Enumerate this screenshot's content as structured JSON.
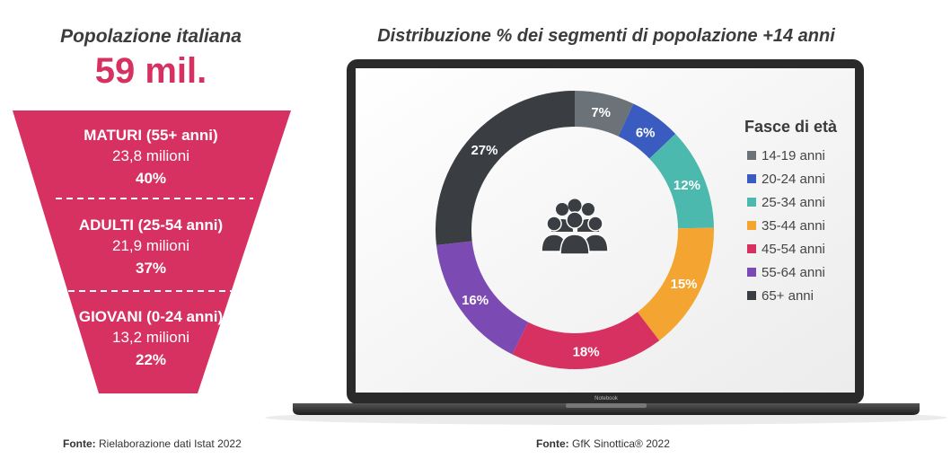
{
  "left": {
    "title": "Popolazione italiana",
    "total": "59 mil.",
    "segments": [
      {
        "name": "MATURI (55+ anni)",
        "value": "23,8 milioni",
        "pct": "40%"
      },
      {
        "name": "ADULTI (25-54 anni)",
        "value": "21,9 milioni",
        "pct": "37%"
      },
      {
        "name": "GIOVANI (0-24 anni)",
        "value": "13,2 milioni",
        "pct": "22%"
      }
    ],
    "source_label": "Fonte:",
    "source_text": "Rielaborazione dati Istat 2022"
  },
  "right": {
    "title": "Distribuzione % dei segmenti di popolazione +14 anni",
    "laptop_label": "Notebook",
    "center_icon": "people-group-icon",
    "source_label": "Fonte:",
    "source_text": "GfK Sinottica® 2022"
  },
  "colors": {
    "accent": "#d63160",
    "laptop_frame": "#2a2a2a"
  },
  "chart_data": {
    "type": "donut",
    "legend_title": "Fasce di età",
    "legend_position": "right",
    "categories": [
      "14-19 anni",
      "20-24 anni",
      "25-34 anni",
      "35-44 anni",
      "45-54 anni",
      "55-64 anni",
      "65+ anni"
    ],
    "values": [
      7,
      6,
      12,
      15,
      18,
      16,
      27
    ],
    "labels": [
      "7%",
      "6%",
      "12%",
      "15%",
      "18%",
      "16%",
      "27%"
    ],
    "colors": [
      "#6b7378",
      "#3a5bbf",
      "#4cb9ae",
      "#f4a531",
      "#d63160",
      "#7b4bb3",
      "#3a3d42"
    ]
  }
}
